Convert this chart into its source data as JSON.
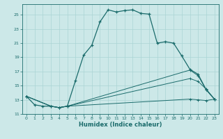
{
  "xlabel": "Humidex (Indice chaleur)",
  "bg_color": "#cce8e8",
  "line_color": "#1a6b6b",
  "grid_color": "#aad4d4",
  "xlim": [
    -0.5,
    23.5
  ],
  "ylim": [
    11,
    26.5
  ],
  "yticks": [
    11,
    13,
    15,
    17,
    19,
    21,
    23,
    25
  ],
  "xticks": [
    0,
    1,
    2,
    3,
    4,
    5,
    6,
    7,
    8,
    9,
    10,
    11,
    12,
    13,
    14,
    15,
    16,
    17,
    18,
    19,
    20,
    21,
    22,
    23
  ],
  "curve1_x": [
    0,
    1,
    2,
    3,
    4,
    5,
    6,
    7,
    8,
    9,
    10,
    11,
    12,
    13,
    14,
    15,
    16,
    17,
    18,
    19,
    20,
    21,
    22,
    23
  ],
  "curve1_y": [
    13.5,
    12.3,
    12.1,
    12.1,
    11.9,
    12.1,
    15.7,
    19.3,
    20.7,
    24.0,
    25.7,
    25.4,
    25.6,
    25.7,
    25.2,
    25.1,
    21.0,
    21.2,
    21.0,
    19.2,
    17.3,
    16.6,
    14.4,
    13.1
  ],
  "curve2_x": [
    0,
    3,
    4,
    5,
    20,
    21,
    22,
    23
  ],
  "curve2_y": [
    13.5,
    12.1,
    11.9,
    12.1,
    17.2,
    16.4,
    14.4,
    13.1
  ],
  "curve3_x": [
    0,
    3,
    4,
    5,
    20,
    21,
    22,
    23
  ],
  "curve3_y": [
    13.5,
    12.1,
    11.9,
    12.1,
    16.0,
    15.6,
    14.5,
    13.1
  ],
  "curve4_x": [
    0,
    3,
    4,
    5,
    20,
    21,
    22,
    23
  ],
  "curve4_y": [
    13.5,
    12.1,
    11.9,
    12.1,
    13.1,
    13.0,
    12.9,
    13.1
  ]
}
